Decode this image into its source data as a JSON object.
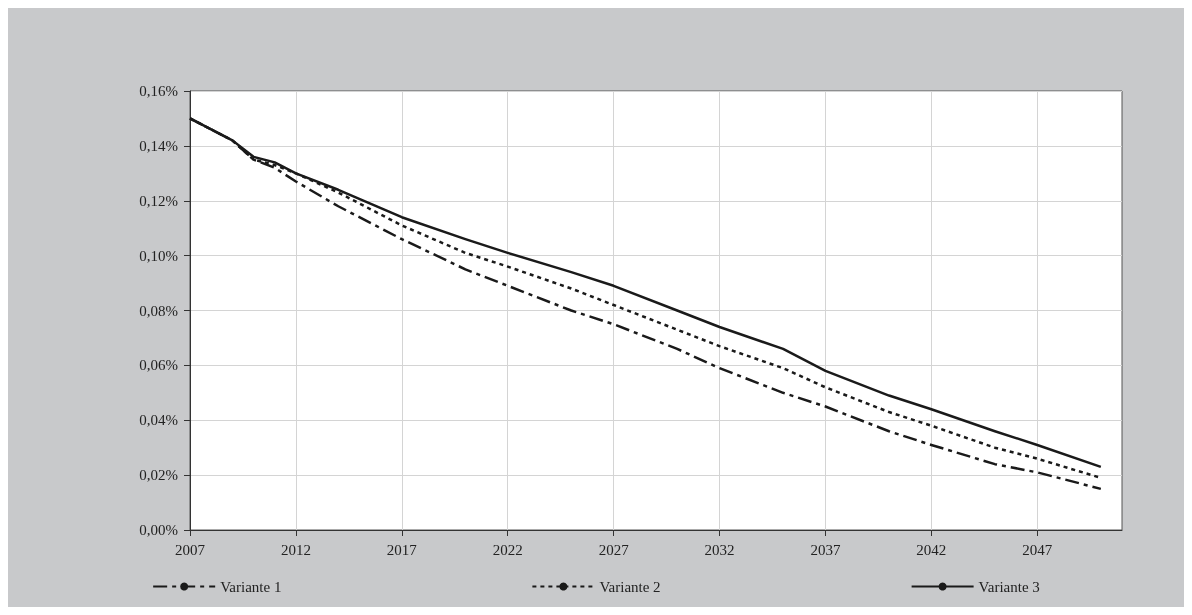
{
  "chart_data": {
    "type": "line",
    "x": [
      2007,
      2008,
      2009,
      2010,
      2011,
      2012,
      2014,
      2017,
      2020,
      2022,
      2025,
      2027,
      2030,
      2032,
      2035,
      2037,
      2040,
      2042,
      2045,
      2047,
      2050
    ],
    "series": [
      {
        "name": "Variante 1",
        "color": "#1a1a1a",
        "line_style": "dashed",
        "values": [
          0.15,
          0.146,
          0.142,
          0.135,
          0.132,
          0.127,
          0.118,
          0.106,
          0.095,
          0.089,
          0.08,
          0.075,
          0.066,
          0.059,
          0.05,
          0.045,
          0.036,
          0.031,
          0.024,
          0.021,
          0.015
        ]
      },
      {
        "name": "Variante 2",
        "color": "#1a1a1a",
        "line_style": "dotted",
        "values": [
          0.15,
          0.146,
          0.142,
          0.135,
          0.133,
          0.13,
          0.123,
          0.111,
          0.101,
          0.096,
          0.088,
          0.082,
          0.073,
          0.067,
          0.059,
          0.052,
          0.043,
          0.038,
          0.03,
          0.026,
          0.019
        ]
      },
      {
        "name": "Variante 3",
        "color": "#1a1a1a",
        "line_style": "solid",
        "values": [
          0.15,
          0.146,
          0.142,
          0.136,
          0.134,
          0.13,
          0.124,
          0.114,
          0.106,
          0.101,
          0.094,
          0.089,
          0.08,
          0.074,
          0.066,
          0.058,
          0.049,
          0.044,
          0.036,
          0.031,
          0.023
        ]
      }
    ],
    "xlim": [
      2007,
      2051
    ],
    "xticks": [
      2007,
      2012,
      2017,
      2022,
      2027,
      2032,
      2037,
      2042,
      2047
    ],
    "ylim": [
      0,
      0.16
    ],
    "yticks": [
      {
        "value": 0,
        "label": "0,00%"
      },
      {
        "value": 0.02,
        "label": "0,02%"
      },
      {
        "value": 0.04,
        "label": "0,04%"
      },
      {
        "value": 0.06,
        "label": "0,06%"
      },
      {
        "value": 0.08,
        "label": "0,08%"
      },
      {
        "value": 0.1,
        "label": "0,10%"
      },
      {
        "value": 0.12,
        "label": "0,12%"
      },
      {
        "value": 0.14,
        "label": "0,14%"
      },
      {
        "value": 0.16,
        "label": "0,16%"
      }
    ],
    "grid": true,
    "legend": "bottom",
    "marker": "none"
  }
}
